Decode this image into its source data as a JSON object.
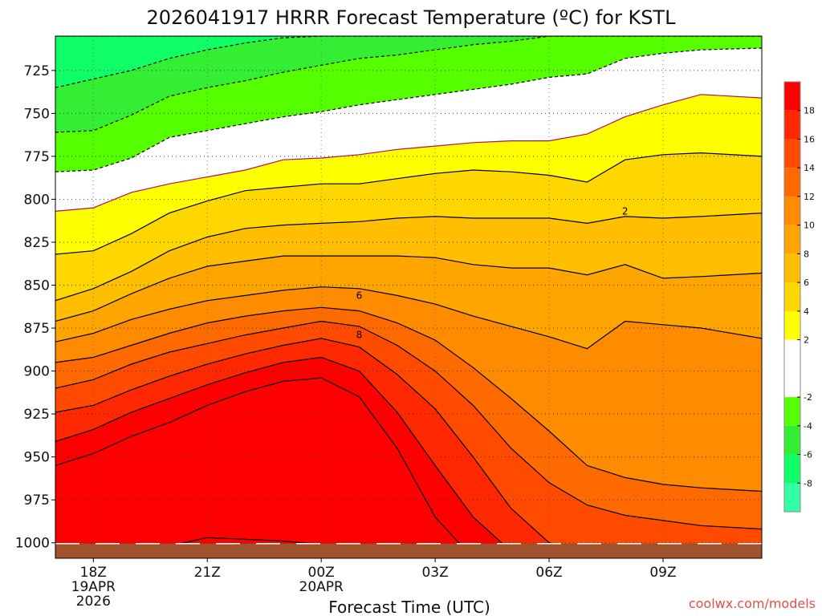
{
  "chart_data": {
    "type": "heatmap",
    "title": "2026041917 HRRR Forecast Temperature (ºC) for KSTL",
    "xlabel": "Forecast Time (UTC)",
    "ylabel": "",
    "x_range_hours_from_18Z": [
      -1,
      17.6
    ],
    "y_range_hPa": [
      705,
      1009
    ],
    "y_ticks": [
      "725",
      "750",
      "775",
      "800",
      "825",
      "850",
      "875",
      "900",
      "925",
      "950",
      "975",
      "1000"
    ],
    "x_ticks": [
      {
        "hour": 0,
        "lines": [
          "18Z",
          "19APR",
          "2026"
        ]
      },
      {
        "hour": 3,
        "lines": [
          "21Z"
        ]
      },
      {
        "hour": 6,
        "lines": [
          "00Z",
          "20APR"
        ]
      },
      {
        "hour": 9,
        "lines": [
          "03Z"
        ]
      },
      {
        "hour": 12,
        "lines": [
          "06Z"
        ]
      },
      {
        "hour": 15,
        "lines": [
          "09Z"
        ]
      }
    ],
    "grid": true,
    "levels_degC": [
      -10,
      -8,
      -6,
      -4,
      -2,
      2,
      4,
      6,
      8,
      10,
      12,
      14,
      16,
      18,
      20
    ],
    "colorbar_labels": [
      "18",
      "16",
      "14",
      "12",
      "10",
      "8",
      "6",
      "4",
      "2",
      "-2",
      "-4",
      "-6",
      "-8"
    ],
    "colors": [
      "#33ffa5",
      "#11ff66",
      "#33ee33",
      "#55ff00",
      "#ffffff",
      "#ffff00",
      "#ffd700",
      "#ffbe00",
      "#ffa500",
      "#ff8c00",
      "#ff6a00",
      "#ff4a00",
      "#ff2800",
      "#ff0000"
    ],
    "ground_color": "#a0522d",
    "isotherm_labels": [
      {
        "text": "2",
        "hour": 14.0,
        "hPa": 807
      },
      {
        "text": "6",
        "hour": 7.0,
        "hPa": 856
      },
      {
        "text": "8",
        "hour": 7.0,
        "hPa": 879
      }
    ],
    "isotherms_hPa": {
      "hours": [
        -1,
        0,
        1,
        2,
        3,
        4,
        5,
        6,
        7,
        8,
        9,
        10,
        11,
        12,
        13,
        14,
        15,
        16,
        17.6
      ],
      "series": [
        {
          "name": "-8",
          "values": [
            705,
            705,
            705,
            705,
            705,
            705,
            705,
            705,
            705,
            705,
            705,
            705,
            705,
            705,
            705,
            705,
            705,
            705,
            705
          ]
        },
        {
          "name": "-6",
          "values": [
            735,
            730,
            725,
            718,
            713,
            709,
            706,
            705,
            705,
            705,
            705,
            705,
            705,
            705,
            705,
            705,
            705,
            705,
            705
          ]
        },
        {
          "name": "-4",
          "values": [
            761,
            760,
            751,
            740,
            735,
            731,
            726,
            722,
            718,
            716,
            713,
            710,
            708,
            705,
            705,
            705,
            705,
            705,
            705
          ]
        },
        {
          "name": "-2",
          "values": [
            784,
            783,
            776,
            764,
            760,
            756,
            752,
            749,
            745,
            742,
            739,
            736,
            733,
            729,
            727,
            718,
            715,
            713,
            712
          ]
        },
        {
          "name": "0",
          "values": [
            807,
            805,
            796,
            791,
            787,
            783,
            777,
            776,
            774,
            771,
            769,
            767,
            766,
            766,
            762,
            752,
            745,
            739,
            741
          ]
        },
        {
          "name": "2",
          "values": [
            832,
            830,
            820,
            808,
            801,
            795,
            793,
            791,
            791,
            788,
            785,
            783,
            784,
            786,
            790,
            777,
            774,
            773,
            775
          ]
        },
        {
          "name": "4",
          "values": [
            859,
            852,
            842,
            830,
            822,
            817,
            815,
            814,
            813,
            811,
            810,
            811,
            811,
            811,
            814,
            810,
            811,
            810,
            808
          ]
        },
        {
          "name": "6",
          "values": [
            871,
            865,
            855,
            846,
            839,
            836,
            833,
            833,
            833,
            833,
            834,
            838,
            840,
            840,
            844,
            838,
            846,
            845,
            843
          ]
        },
        {
          "name": "8",
          "values": [
            883,
            878,
            870,
            864,
            859,
            856,
            853,
            851,
            852,
            856,
            861,
            868,
            874,
            880,
            887,
            871,
            873,
            875,
            881
          ]
        },
        {
          "name": "10",
          "values": [
            895,
            892,
            885,
            878,
            872,
            868,
            865,
            863,
            865,
            872,
            882,
            898,
            916,
            935,
            955,
            962,
            966,
            968,
            970
          ]
        },
        {
          "name": "12",
          "values": [
            910,
            905,
            896,
            889,
            884,
            879,
            875,
            871,
            874,
            885,
            900,
            920,
            945,
            965,
            978,
            984,
            987,
            990,
            992
          ]
        },
        {
          "name": "14",
          "values": [
            924,
            920,
            911,
            903,
            896,
            890,
            885,
            881,
            886,
            902,
            922,
            950,
            980,
            1000,
            1005,
            1008,
            1009,
            1009,
            1009
          ]
        },
        {
          "name": "16",
          "values": [
            941,
            934,
            924,
            916,
            908,
            901,
            895,
            892,
            900,
            924,
            955,
            985,
            1005,
            1009,
            1009,
            1009,
            1009,
            1009,
            1009
          ]
        },
        {
          "name": "18",
          "values": [
            955,
            948,
            938,
            930,
            920,
            912,
            906,
            904,
            915,
            945,
            985,
            1009,
            1009,
            1009,
            1009,
            1009,
            1009,
            1009,
            1009
          ]
        },
        {
          "name": "20",
          "values": [
            1009,
            1009,
            1009,
            1002,
            997,
            998,
            999,
            1001,
            1009,
            1009,
            1009,
            1009,
            1009,
            1009,
            1009,
            1009,
            1009,
            1009,
            1009
          ]
        }
      ]
    }
  },
  "credit": "coolwx.com/models"
}
